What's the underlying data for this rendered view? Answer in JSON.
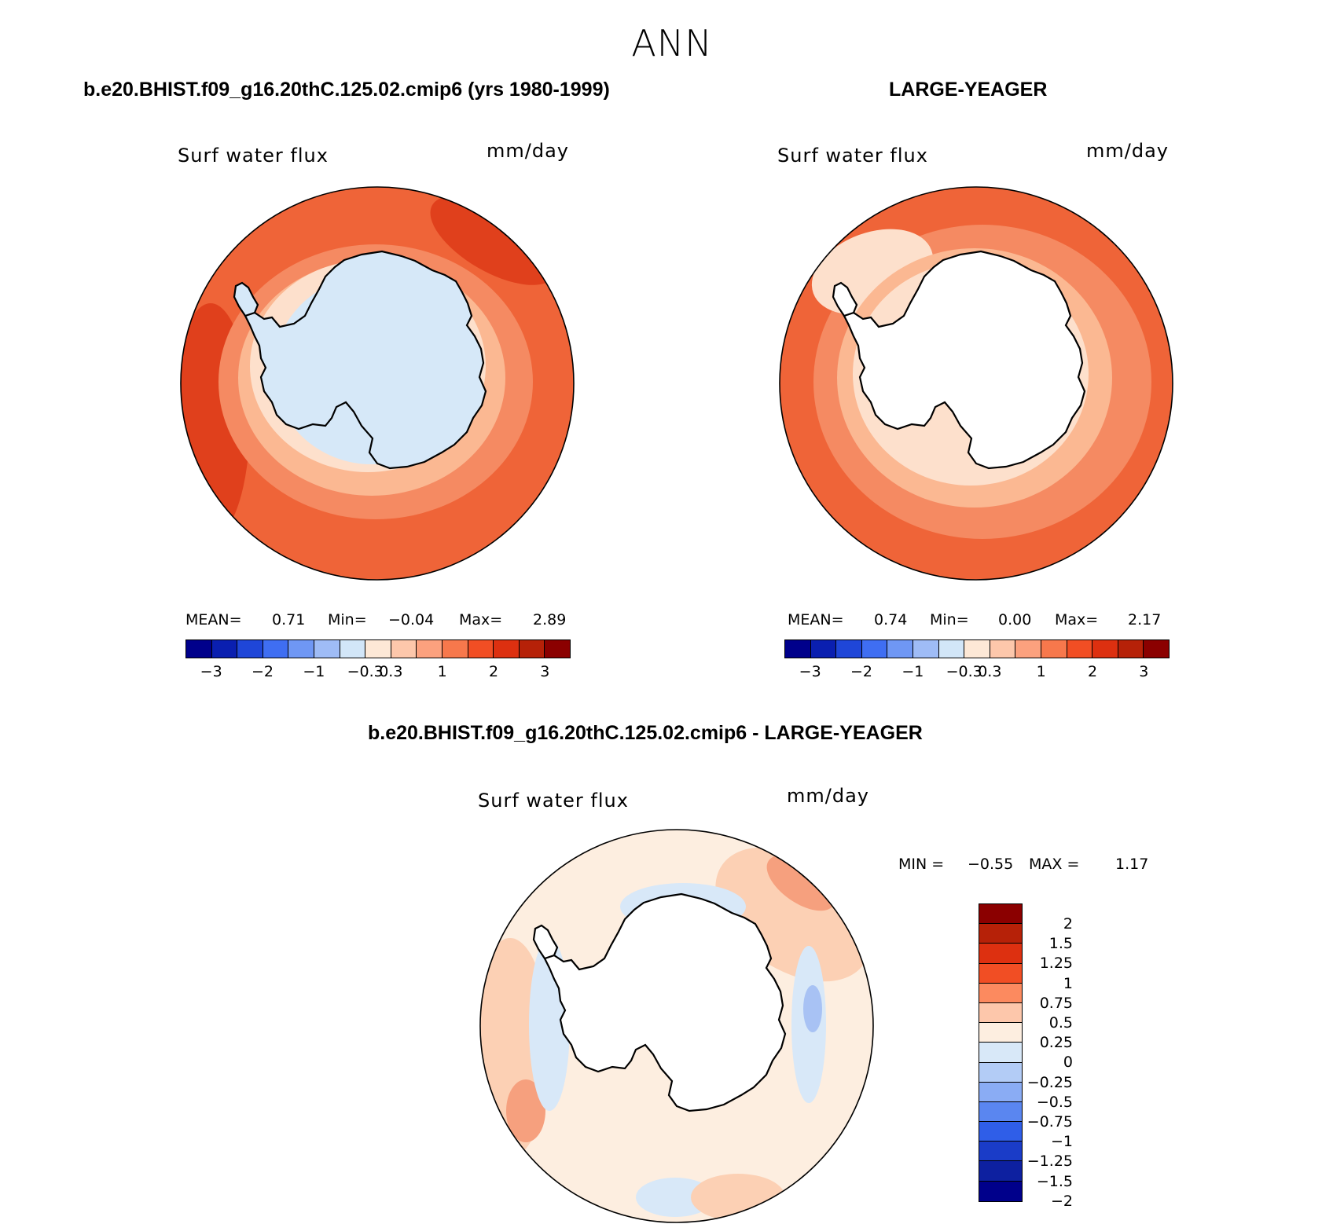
{
  "season": "ANN",
  "panels": [
    {
      "case_title": "b.e20.BHIST.f09_g16.20thC.125.02.cmip6 (yrs 1980-1999)",
      "var_label": "Surf water flux",
      "units": "mm/day",
      "mean_label": "MEAN=",
      "mean": "0.71",
      "min_label": "Min=",
      "min": "−0.04",
      "max_label": "Max=",
      "max": "2.89"
    },
    {
      "case_title": "LARGE-YEAGER",
      "var_label": "Surf water flux",
      "units": "mm/day",
      "mean_label": "MEAN=",
      "mean": "0.74",
      "min_label": "Min=",
      "min": "0.00",
      "max_label": "Max=",
      "max": "2.17"
    }
  ],
  "colorbar_top": {
    "colors": [
      "#00008b",
      "#0a1fb0",
      "#1f46d8",
      "#3f6ef2",
      "#6f97f4",
      "#9fbcf6",
      "#d2e6f8",
      "#fde8d6",
      "#fdc7ab",
      "#fca17e",
      "#f7784c",
      "#f14e24",
      "#dd3010",
      "#b62108",
      "#8b0000"
    ],
    "tick_labels": [
      "−3",
      "−2",
      "−1",
      "−0.3",
      "0.3",
      "1",
      "2",
      "3"
    ]
  },
  "diff": {
    "title": "b.e20.BHIST.f09_g16.20thC.125.02.cmip6 - LARGE-YEAGER",
    "var_label": "Surf water flux",
    "units": "mm/day",
    "min_label": "MIN =",
    "min": "−0.55",
    "max_label": "MAX =",
    "max": "1.17",
    "colorbar": {
      "colors_top_to_bottom": [
        "#8b0000",
        "#b62108",
        "#dd3010",
        "#f14e24",
        "#fc8a5f",
        "#fdc7ab",
        "#fdeee0",
        "#d8e8f8",
        "#b3ccf6",
        "#8aacf4",
        "#5a86f0",
        "#2f5ee8",
        "#1a3cc8",
        "#0d20a0",
        "#00008b"
      ],
      "tick_labels": [
        "2",
        "1.5",
        "1.25",
        "1",
        "0.75",
        "0.5",
        "0.25",
        "0",
        "−0.25",
        "−0.5",
        "−0.75",
        "−1",
        "−1.25",
        "−1.5",
        "−2"
      ]
    }
  },
  "map_palette": {
    "ice": "#d6e8f8",
    "pale": "#fde0cc",
    "light": "#fbb892",
    "mid": "#f58a62",
    "strong": "#ef6438",
    "deep": "#e0401c",
    "diff_pale": "#fdeee0",
    "diff_light": "#fcd0b4",
    "diff_mid": "#f6a07e",
    "diff_strong": "#ee6a44",
    "diff_neg1": "#d8e8f8",
    "diff_neg2": "#a8c2f4",
    "land": "#ffffff",
    "coast": "#000000"
  }
}
